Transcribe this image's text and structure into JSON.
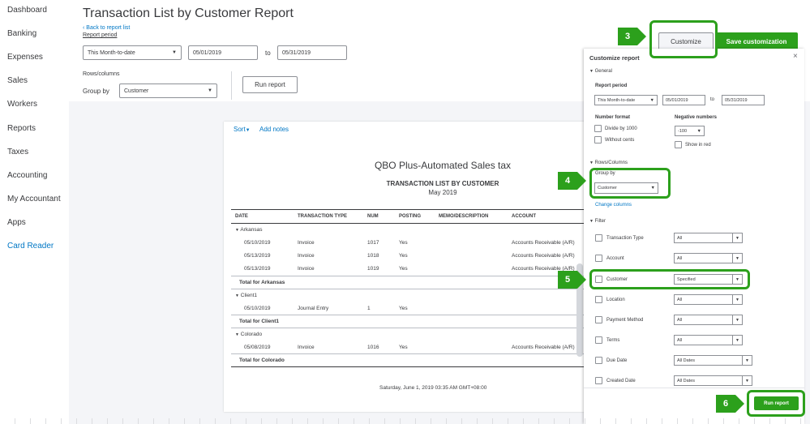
{
  "sidebar": {
    "items": [
      "Dashboard",
      "Banking",
      "Expenses",
      "Sales",
      "Workers",
      "Reports",
      "Taxes",
      "Accounting",
      "My Accountant",
      "Apps",
      "Card Reader"
    ]
  },
  "header": {
    "title": "Transaction List by Customer Report",
    "back_link": "Back to report list",
    "report_period_label": "Report period",
    "period_select": "This Month-to-date",
    "date_from": "05/01/2019",
    "to_label": "to",
    "date_to": "05/31/2019",
    "rows_columns_label": "Rows/columns",
    "group_by_label": "Group by",
    "group_by_value": "Customer",
    "run_report": "Run report",
    "customize": "Customize",
    "save_customization": "Save customization"
  },
  "report": {
    "sort_label": "Sort",
    "add_notes": "Add notes",
    "company": "QBO Plus-Automated Sales tax",
    "title": "TRANSACTION LIST BY CUSTOMER",
    "period": "May 2019",
    "columns": [
      "DATE",
      "TRANSACTION TYPE",
      "NUM",
      "POSTING",
      "MEMO/DESCRIPTION",
      "ACCOUNT"
    ],
    "groups": [
      {
        "name": "Arkansas",
        "rows": [
          [
            "05/10/2019",
            "Invoice",
            "1017",
            "Yes",
            "",
            "Accounts Receivable (A/R)"
          ],
          [
            "05/13/2019",
            "Invoice",
            "1018",
            "Yes",
            "",
            "Accounts Receivable (A/R)"
          ],
          [
            "05/13/2019",
            "Invoice",
            "1019",
            "Yes",
            "",
            "Accounts Receivable (A/R)"
          ]
        ],
        "total": "Total for Arkansas"
      },
      {
        "name": "Client1",
        "rows": [
          [
            "05/10/2019",
            "Journal Entry",
            "1",
            "Yes",
            "",
            ""
          ]
        ],
        "total": "Total for Client1"
      },
      {
        "name": "Colorado",
        "rows": [
          [
            "05/08/2019",
            "Invoice",
            "1016",
            "Yes",
            "",
            "Accounts Receivable (A/R)"
          ]
        ],
        "total": "Total for Colorado"
      }
    ],
    "footer": "Saturday, June 1, 2019  03:35 AM GMT+08:00"
  },
  "panel": {
    "title": "Customize report",
    "general": "General",
    "report_period": "Report period",
    "period_select": "This Month-to-date",
    "date_from": "05/01/2019",
    "to_label": "to",
    "date_to": "05/31/2019",
    "number_format": "Number format",
    "divide_by_1000": "Divide by 1000",
    "without_cents": "Without cents",
    "negative_numbers": "Negative numbers",
    "negative_value": "-100",
    "show_in_red": "Show in red",
    "rows_columns": "Rows/Columns",
    "group_by": "Group by",
    "group_by_value": "Customer",
    "change_columns": "Change columns",
    "filter": "Filter",
    "filters": [
      {
        "label": "Transaction Type",
        "value": "All"
      },
      {
        "label": "Account",
        "value": "All"
      },
      {
        "label": "Customer",
        "value": "Specified"
      },
      {
        "label": "Location",
        "value": "All"
      },
      {
        "label": "Payment Method",
        "value": "All"
      },
      {
        "label": "Terms",
        "value": "All"
      },
      {
        "label": "Due Date",
        "value": "All Dates"
      },
      {
        "label": "Created Date",
        "value": "All Dates"
      }
    ],
    "run_report": "Run report"
  },
  "annotations": [
    "3",
    "4",
    "5",
    "6"
  ],
  "colors": {
    "accent_green": "#2ca01c",
    "link_blue": "#0077c5",
    "text": "#393a3d"
  }
}
